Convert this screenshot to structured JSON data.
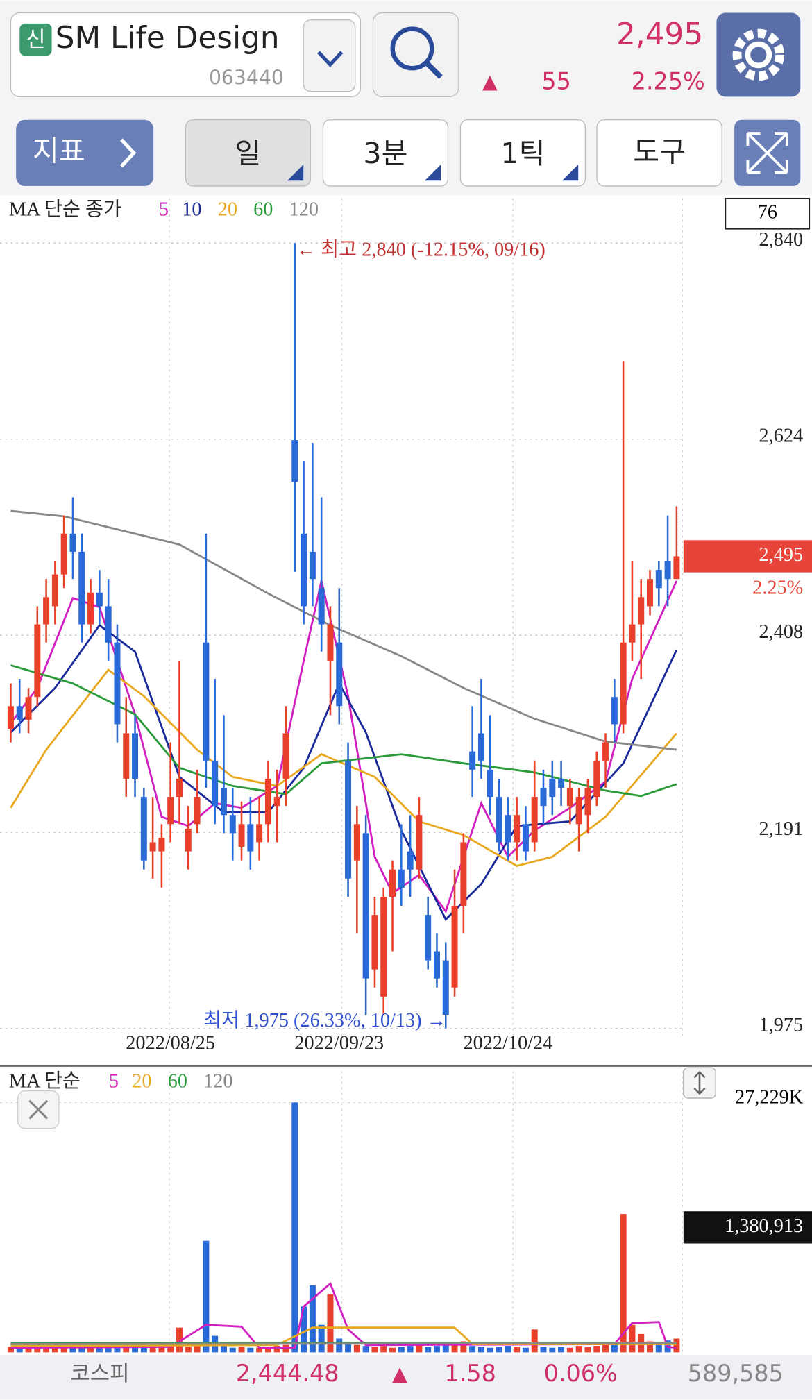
{
  "header": {
    "badge": "신",
    "name": "SM Life Design",
    "code": "063440",
    "price": "2,495",
    "arrow": "▲",
    "change": "55",
    "rate": "2.25%"
  },
  "toolbar": {
    "indicator": "지표",
    "day": "일",
    "minute": "3분",
    "tick": "1틱",
    "tools": "도구"
  },
  "chart_data": [
    {
      "type": "candlestick",
      "legend_title": "MA 단순 종가",
      "count_label": "76",
      "up_color": "#e8402a",
      "down_color": "#2a6ad8",
      "categories": [
        null,
        null,
        null,
        null,
        null,
        null,
        null,
        null,
        null,
        null,
        null,
        null,
        null,
        null,
        null,
        null,
        null,
        null,
        "2022/08/25",
        null,
        null,
        null,
        null,
        null,
        null,
        null,
        null,
        null,
        null,
        null,
        null,
        null,
        null,
        null,
        null,
        null,
        null,
        "2022/09/23",
        null,
        null,
        null,
        null,
        null,
        null,
        null,
        null,
        null,
        null,
        null,
        null,
        null,
        null,
        null,
        null,
        null,
        null,
        "2022/10/24",
        null,
        null,
        null,
        null,
        null,
        null,
        null,
        null,
        null,
        null,
        null,
        null,
        null,
        null,
        null,
        null,
        null,
        null,
        null
      ],
      "ohlc": [
        [
          2305,
          2355,
          2290,
          2330
        ],
        [
          2330,
          2360,
          2300,
          2315
        ],
        [
          2315,
          2350,
          2300,
          2340
        ],
        [
          2340,
          2440,
          2330,
          2420
        ],
        [
          2420,
          2470,
          2400,
          2450
        ],
        [
          2440,
          2490,
          2420,
          2475
        ],
        [
          2475,
          2540,
          2460,
          2520
        ],
        [
          2520,
          2560,
          2470,
          2500
        ],
        [
          2500,
          2520,
          2400,
          2420
        ],
        [
          2420,
          2470,
          2410,
          2455
        ],
        [
          2455,
          2480,
          2420,
          2440
        ],
        [
          2440,
          2470,
          2380,
          2400
        ],
        [
          2400,
          2420,
          2290,
          2310
        ],
        [
          2250,
          2340,
          2230,
          2300
        ],
        [
          2300,
          2320,
          2230,
          2250
        ],
        [
          2230,
          2240,
          2150,
          2160
        ],
        [
          2170,
          2230,
          2140,
          2180
        ],
        [
          2170,
          2200,
          2130,
          2185
        ],
        [
          2200,
          2290,
          2180,
          2230
        ],
        [
          2230,
          2380,
          2200,
          2250
        ],
        [
          2170,
          2220,
          2150,
          2195
        ],
        [
          2200,
          2260,
          2190,
          2230
        ],
        [
          2400,
          2520,
          2240,
          2270
        ],
        [
          2270,
          2360,
          2200,
          2220
        ],
        [
          2240,
          2320,
          2190,
          2210
        ],
        [
          2210,
          2240,
          2160,
          2190
        ],
        [
          2175,
          2225,
          2160,
          2200
        ],
        [
          2200,
          2230,
          2150,
          2170
        ],
        [
          2180,
          2230,
          2160,
          2200
        ],
        [
          2200,
          2270,
          2180,
          2250
        ],
        [
          2220,
          2260,
          2180,
          2230
        ],
        [
          2250,
          2330,
          2220,
          2300
        ],
        [
          2623,
          2840,
          2478,
          2577
        ],
        [
          2520,
          2600,
          2420,
          2440
        ],
        [
          2500,
          2620,
          2440,
          2470
        ],
        [
          2460,
          2560,
          2390,
          2420
        ],
        [
          2380,
          2440,
          2320,
          2420
        ],
        [
          2400,
          2460,
          2310,
          2330
        ],
        [
          2270,
          2290,
          2120,
          2140
        ],
        [
          2160,
          2220,
          2080,
          2200
        ],
        [
          2190,
          2210,
          1990,
          2030
        ],
        [
          2040,
          2120,
          2020,
          2100
        ],
        [
          2010,
          2130,
          1990,
          2120
        ],
        [
          2120,
          2160,
          2060,
          2150
        ],
        [
          2150,
          2200,
          2110,
          2130
        ],
        [
          2170,
          2210,
          2120,
          2150
        ],
        [
          2150,
          2230,
          2140,
          2210
        ],
        [
          2100,
          2120,
          2040,
          2050
        ],
        [
          2060,
          2080,
          2020,
          2030
        ],
        [
          2050,
          2070,
          1975,
          1990
        ],
        [
          2020,
          2150,
          2010,
          2110
        ],
        [
          2110,
          2190,
          2080,
          2180
        ],
        [
          2280,
          2330,
          2230,
          2260
        ],
        [
          2300,
          2360,
          2250,
          2270
        ],
        [
          2260,
          2320,
          2210,
          2230
        ],
        [
          2230,
          2250,
          2170,
          2180
        ],
        [
          2210,
          2230,
          2160,
          2180
        ],
        [
          2180,
          2230,
          2160,
          2210
        ],
        [
          2200,
          2220,
          2160,
          2170
        ],
        [
          2180,
          2270,
          2170,
          2230
        ],
        [
          2240,
          2260,
          2200,
          2220
        ],
        [
          2250,
          2270,
          2210,
          2230
        ],
        [
          2250,
          2270,
          2220,
          2240
        ],
        [
          2220,
          2250,
          2200,
          2240
        ],
        [
          2200,
          2240,
          2170,
          2230
        ],
        [
          2210,
          2250,
          2190,
          2240
        ],
        [
          2230,
          2280,
          2220,
          2270
        ],
        [
          2270,
          2300,
          2240,
          2290
        ],
        [
          2340,
          2360,
          2290,
          2310
        ],
        [
          2310,
          2710,
          2300,
          2400
        ],
        [
          2400,
          2490,
          2380,
          2420
        ],
        [
          2420,
          2470,
          2360,
          2450
        ],
        [
          2440,
          2480,
          2430,
          2470
        ],
        [
          2480,
          2490,
          2440,
          2460
        ],
        [
          2490,
          2540,
          2440,
          2470
        ],
        [
          2470,
          2550,
          2470,
          2495
        ]
      ],
      "lines": [
        {
          "name": "5",
          "color": "#d21fc2",
          "x": [
            0,
            3,
            7,
            10,
            14,
            17,
            20,
            23,
            26,
            30,
            33,
            35,
            38,
            41,
            43,
            46,
            49,
            53,
            56,
            59,
            63,
            67,
            70,
            75
          ],
          "values": [
            2311,
            2350,
            2449,
            2439,
            2321,
            2208,
            2198,
            2223,
            2218,
            2242,
            2380,
            2468,
            2341,
            2164,
            2124,
            2144,
            2104,
            2223,
            2164,
            2193,
            2218,
            2247,
            2360,
            2468
          ]
        },
        {
          "name": "10",
          "color": "#1a2a9a",
          "x": [
            0,
            5,
            10,
            14,
            19,
            24,
            29,
            33,
            37,
            40,
            44,
            49,
            53,
            57,
            63,
            69,
            75
          ],
          "values": [
            2301,
            2350,
            2419,
            2390,
            2252,
            2213,
            2213,
            2262,
            2355,
            2301,
            2193,
            2095,
            2134,
            2198,
            2203,
            2267,
            2392
          ]
        },
        {
          "name": "20",
          "color": "#e8a820",
          "x": [
            0,
            4,
            11,
            15,
            21,
            25,
            30,
            35,
            41,
            46,
            51,
            57,
            61,
            67,
            75
          ],
          "values": [
            2218,
            2282,
            2370,
            2341,
            2282,
            2252,
            2242,
            2277,
            2252,
            2203,
            2188,
            2154,
            2164,
            2208,
            2300
          ]
        },
        {
          "name": "60",
          "color": "#2a9a3a",
          "x": [
            0,
            7,
            14,
            19,
            25,
            31,
            35,
            44,
            51,
            59,
            67,
            71,
            75
          ],
          "values": [
            2375,
            2355,
            2321,
            2262,
            2242,
            2233,
            2267,
            2277,
            2267,
            2257,
            2237,
            2231,
            2244
          ]
        },
        {
          "name": "120",
          "color": "#888888",
          "x": [
            0,
            6,
            19,
            29,
            36,
            44,
            51,
            59,
            67,
            75
          ],
          "values": [
            2545,
            2539,
            2508,
            2454,
            2419,
            2385,
            2350,
            2316,
            2291,
            2282
          ]
        }
      ],
      "ylim": [
        1975,
        2840
      ],
      "yticks": [
        {
          "value": 2840,
          "label": "2,840"
        },
        {
          "value": 2624,
          "label": "2,624"
        },
        {
          "value": 2408,
          "label": "2,408"
        },
        {
          "value": 2191,
          "label": "2,191"
        },
        {
          "value": 1975,
          "label": "1,975"
        }
      ],
      "grid": true,
      "current": {
        "value": 2495,
        "label": "2,495",
        "rate": "2.25%"
      },
      "annotations": [
        "← 최고 2,840 (-12.15%, 09/16)",
        "최저 1,975 (26.33%, 10/13) →"
      ]
    },
    {
      "type": "volume",
      "legend_title": "MA 단순",
      "value_box": "1,380,913",
      "values": [
        600,
        500,
        600,
        700,
        800,
        700,
        900,
        700,
        600,
        500,
        600,
        500,
        700,
        600,
        500,
        600,
        500,
        600,
        700,
        2700,
        600,
        800,
        12150,
        1800,
        700,
        500,
        600,
        500,
        500,
        600,
        700,
        800,
        27229,
        5000,
        7300,
        3000,
        6300,
        1500,
        900,
        800,
        700,
        600,
        700,
        500,
        600,
        700,
        800,
        600,
        700,
        900,
        800,
        1200,
        700,
        600,
        500,
        600,
        700,
        600,
        500,
        2500,
        600,
        500,
        600,
        500,
        700,
        600,
        700,
        800,
        900,
        15073,
        3000,
        2000,
        1200,
        1100,
        1300,
        1500
      ],
      "lines": [
        {
          "name": "5",
          "color": "#d21fc2",
          "x": [
            0,
            18,
            22,
            26,
            28,
            32,
            33,
            36,
            38,
            40,
            68,
            70,
            73,
            74,
            75
          ],
          "values": [
            500,
            600,
            3000,
            2800,
            500,
            500,
            5000,
            7500,
            2500,
            800,
            900,
            3200,
            3300,
            600,
            500
          ]
        },
        {
          "name": "20",
          "color": "#e8a820",
          "x": [
            0,
            30,
            34,
            50,
            52,
            75
          ],
          "values": [
            700,
            800,
            2700,
            2700,
            900,
            900
          ]
        },
        {
          "name": "60",
          "color": "#2a9a3a",
          "x": [
            0,
            75
          ],
          "values": [
            1000,
            1050
          ]
        },
        {
          "name": "120",
          "color": "#888888",
          "x": [
            0,
            75
          ],
          "values": [
            900,
            1000
          ]
        }
      ],
      "ylim": [
        0,
        27229
      ],
      "yticks": [
        {
          "value": 27229,
          "label": "27,229K"
        }
      ]
    }
  ],
  "footer": {
    "index": "코스피",
    "value": "2,444.48",
    "arrow": "▲",
    "change": "1.58",
    "rate": "0.06%",
    "volume": "589,585"
  }
}
